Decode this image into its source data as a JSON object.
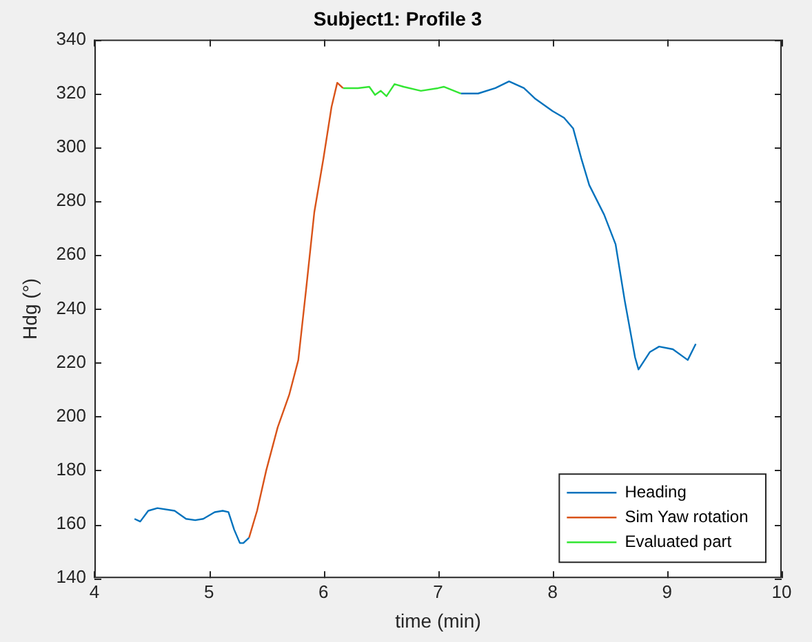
{
  "chart_data": {
    "type": "line",
    "title": "Subject1: Profile 3",
    "xlabel": "time (min)",
    "ylabel": "Hdg (°)",
    "xlim": [
      4,
      10
    ],
    "xticks": [
      4,
      5,
      6,
      7,
      8,
      9,
      10
    ],
    "ylim": [
      140,
      340
    ],
    "yticks": [
      140,
      160,
      180,
      200,
      220,
      240,
      260,
      280,
      300,
      320,
      340
    ],
    "grid": false,
    "legend": "bottom right",
    "marker": "none",
    "line_style": "solid",
    "series": [
      {
        "name": "Heading",
        "color": "#0072bd",
        "x": [
          4.35,
          4.4,
          4.47,
          4.55,
          4.7,
          4.8,
          4.88,
          4.95,
          5.05,
          5.12,
          5.17,
          5.22,
          5.27,
          5.3,
          5.35,
          6.0,
          7.2,
          7.35,
          7.5,
          7.62,
          7.75,
          7.85,
          8.0,
          8.1,
          8.18,
          8.25,
          8.32,
          8.45,
          8.55,
          8.63,
          8.72,
          8.75,
          8.85,
          8.93,
          9.05,
          9.18,
          9.25
        ],
        "values": [
          162,
          161,
          165,
          166,
          165,
          162,
          161.5,
          162,
          164.5,
          165,
          164.5,
          158,
          153,
          153,
          155,
          null,
          320,
          320,
          322,
          324.5,
          322,
          318,
          313.5,
          311,
          307,
          296,
          286,
          275,
          264,
          243,
          222,
          217.5,
          224,
          226,
          225,
          221,
          227
        ]
      },
      {
        "name": "Sim Yaw rotation",
        "color": "#d95319",
        "x": [
          5.35,
          5.42,
          5.5,
          5.6,
          5.7,
          5.78,
          5.85,
          5.92,
          6.0,
          6.07,
          6.12,
          6.17
        ],
        "values": [
          155,
          165,
          180,
          196,
          208,
          221,
          248,
          276,
          296,
          315,
          324,
          322
        ]
      },
      {
        "name": "Evaluated part",
        "color": "#33e633",
        "x": [
          6.17,
          6.3,
          6.4,
          6.45,
          6.5,
          6.55,
          6.62,
          6.7,
          6.85,
          7.0,
          7.05,
          7.2
        ],
        "values": [
          322,
          322,
          322.5,
          319.5,
          321,
          319,
          323.5,
          322.5,
          321,
          322,
          322.5,
          320
        ]
      }
    ]
  }
}
